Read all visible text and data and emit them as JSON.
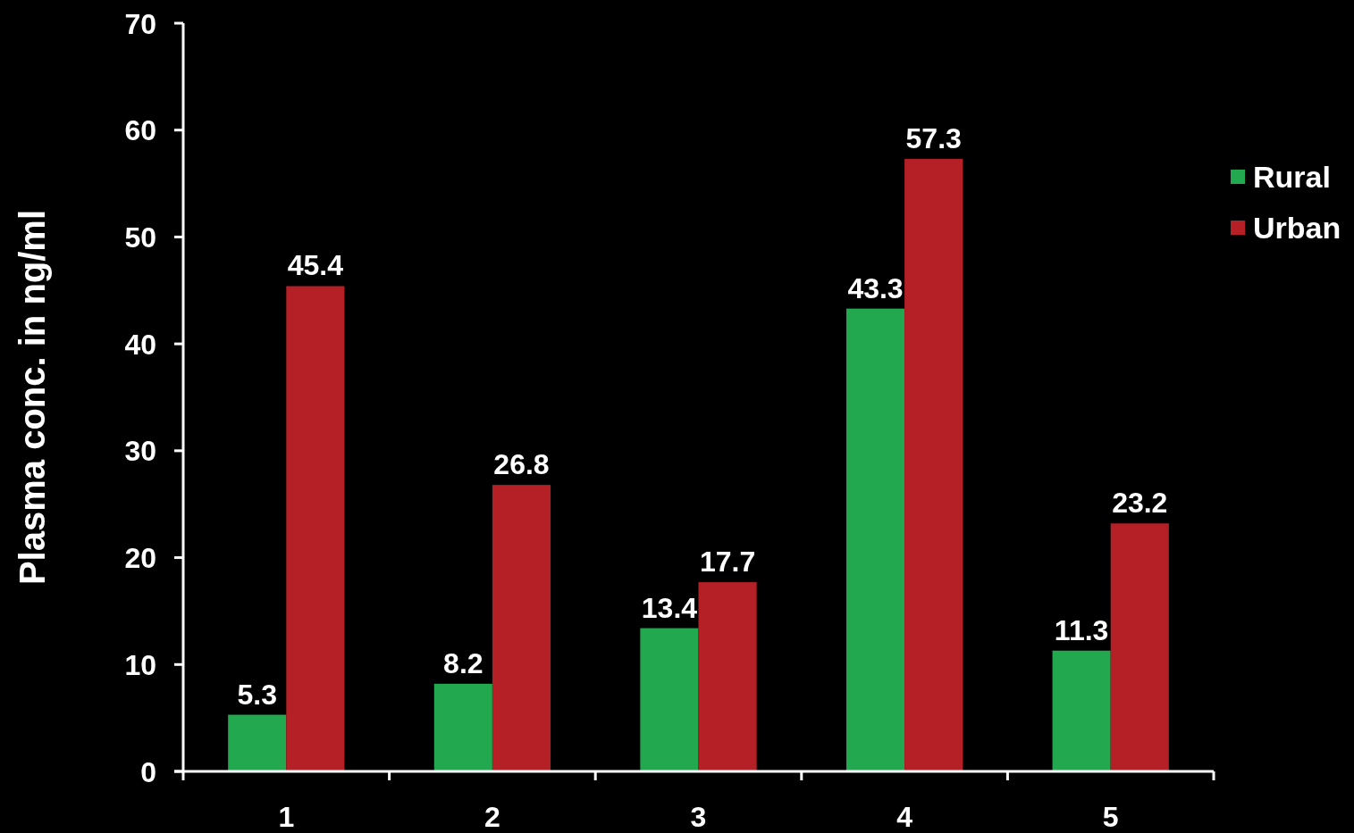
{
  "chart_data": {
    "type": "bar",
    "ylabel": "Plasma conc. in ng/ml",
    "categories": [
      "1",
      "2",
      "3",
      "4",
      "5"
    ],
    "series": [
      {
        "name": "Rural",
        "color": "#22a84f",
        "values": [
          5.3,
          8.2,
          13.4,
          43.3,
          11.3
        ]
      },
      {
        "name": "Urban",
        "color": "#b52026",
        "values": [
          45.4,
          26.8,
          17.7,
          57.3,
          23.2
        ]
      }
    ],
    "ylim": [
      0,
      70
    ],
    "yticks": [
      0,
      10,
      20,
      30,
      40,
      50,
      60,
      70
    ],
    "data_labels": true,
    "legend": "right"
  }
}
